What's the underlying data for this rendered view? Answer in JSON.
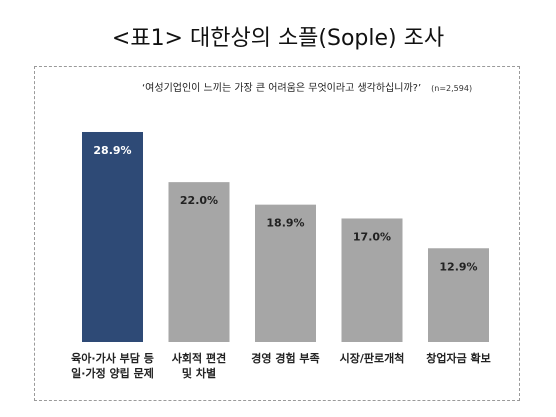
{
  "title": "<표1> 대한상의 소플(Sople) 조사",
  "question": "‘여성기업인이 느끼는 가장 큰 어려움은 무엇이라고 생각하십니까?’",
  "sample": "(n=2,594)",
  "colors": {
    "highlight": "#2e4a76",
    "default": "#a6a6a6",
    "highlight_text": "#ffffff",
    "default_text": "#222222"
  },
  "chart_data": {
    "type": "bar",
    "categories": [
      "육아·가사 부담 등 일·가정 양립 문제",
      "사회적 편견 및 차별",
      "경영 경험 부족",
      "시장/판로개척",
      "창업자금 확보"
    ],
    "category_lines": [
      [
        "육아·가사 부담 등",
        "일·가정 양립 문제"
      ],
      [
        "사회적 편견",
        "및 차별"
      ],
      [
        "경영 경험 부족"
      ],
      [
        "시장/판로개척"
      ],
      [
        "창업자금 확보"
      ]
    ],
    "values": [
      28.9,
      22.0,
      18.9,
      17.0,
      12.9
    ],
    "value_labels": [
      "28.9%",
      "22.0%",
      "18.9%",
      "17.0%",
      "12.9%"
    ],
    "highlight_index": 0,
    "ylim": [
      0,
      30
    ],
    "grid": false,
    "legend": "none",
    "xlabel": "",
    "ylabel": ""
  }
}
